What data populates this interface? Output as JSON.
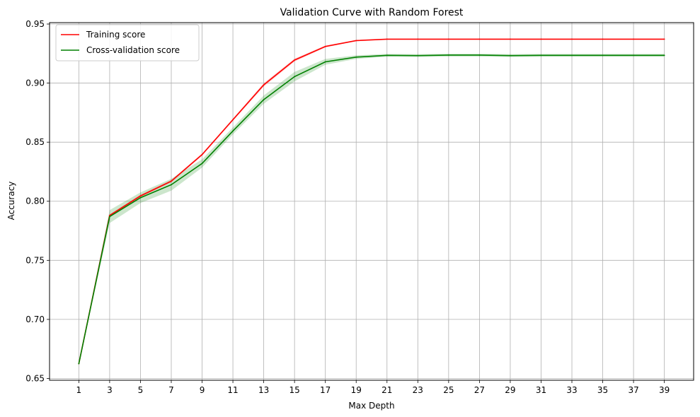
{
  "chart_data": {
    "type": "line",
    "title": "Validation Curve with Random Forest",
    "xlabel": "Max Depth",
    "ylabel": "Accuracy",
    "x": [
      1,
      3,
      5,
      7,
      9,
      11,
      13,
      15,
      17,
      19,
      21,
      23,
      25,
      27,
      29,
      31,
      33,
      35,
      37,
      39
    ],
    "xlim": [
      -0.9,
      40.9
    ],
    "ylim": [
      0.6485,
      0.9512
    ],
    "xticks": [
      1,
      3,
      5,
      7,
      9,
      11,
      13,
      15,
      17,
      19,
      21,
      23,
      25,
      27,
      29,
      31,
      33,
      35,
      37,
      39
    ],
    "yticks": [
      0.65,
      0.7,
      0.75,
      0.8,
      0.85,
      0.9,
      0.95
    ],
    "grid": true,
    "legend_position": "upper-left",
    "series": [
      {
        "name": "Training score",
        "color": "#ff0000",
        "band_color": "#ff0000",
        "values": [
          0.6625,
          0.788,
          0.8045,
          0.817,
          0.8395,
          0.869,
          0.8985,
          0.9195,
          0.931,
          0.936,
          0.9372,
          0.9372,
          0.9372,
          0.9372,
          0.9372,
          0.9372,
          0.9372,
          0.9372,
          0.9372,
          0.9372
        ],
        "std": [
          0.0005,
          0.001,
          0.001,
          0.001,
          0.001,
          0.001,
          0.0015,
          0.0012,
          0.0008,
          0.0004,
          0.0003,
          0.0003,
          0.0003,
          0.0003,
          0.0003,
          0.0003,
          0.0003,
          0.0003,
          0.0003,
          0.0003
        ]
      },
      {
        "name": "Cross-validation score",
        "color": "#008000",
        "band_color": "#008000",
        "values": [
          0.6625,
          0.787,
          0.803,
          0.814,
          0.832,
          0.8595,
          0.886,
          0.9055,
          0.918,
          0.922,
          0.9235,
          0.9233,
          0.9237,
          0.9237,
          0.9233,
          0.9235,
          0.9235,
          0.9235,
          0.9235,
          0.9235
        ],
        "std": [
          0.0005,
          0.0055,
          0.0045,
          0.005,
          0.0035,
          0.003,
          0.0035,
          0.004,
          0.0025,
          0.0015,
          0.0012,
          0.0012,
          0.0012,
          0.0012,
          0.0012,
          0.0012,
          0.0012,
          0.0012,
          0.0012,
          0.0012
        ]
      }
    ]
  }
}
